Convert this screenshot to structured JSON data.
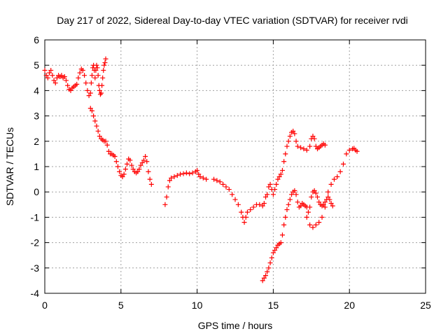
{
  "chart_data": {
    "type": "scatter",
    "title": "Day 217 of 2022, Sidereal Day-to-day VTEC variation (SDTVAR) for receiver rvdi",
    "xlabel": "GPS time / hours",
    "ylabel": "SDTVAR / TECUs",
    "xlim": [
      0,
      25
    ],
    "ylim": [
      -4,
      6
    ],
    "xticks": [
      0,
      5,
      10,
      15,
      20,
      25
    ],
    "yticks": [
      -4,
      -3,
      -2,
      -1,
      0,
      1,
      2,
      3,
      4,
      5,
      6
    ],
    "grid": true,
    "marker": "+",
    "color": "#ff0000",
    "series": [
      {
        "values": [
          [
            0.0,
            4.8
          ],
          [
            0.1,
            4.6
          ],
          [
            0.2,
            4.5
          ],
          [
            0.3,
            4.7
          ],
          [
            0.4,
            4.8
          ],
          [
            0.5,
            4.6
          ],
          [
            0.6,
            4.4
          ],
          [
            0.7,
            4.3
          ],
          [
            0.8,
            4.5
          ],
          [
            0.9,
            4.6
          ],
          [
            1.0,
            4.55
          ],
          [
            1.1,
            4.6
          ],
          [
            1.2,
            4.5
          ],
          [
            1.3,
            4.55
          ],
          [
            1.4,
            4.4
          ],
          [
            1.5,
            4.2
          ],
          [
            1.6,
            4.05
          ],
          [
            1.7,
            4.0
          ],
          [
            1.8,
            4.1
          ],
          [
            1.9,
            4.15
          ],
          [
            2.0,
            4.2
          ],
          [
            2.1,
            4.25
          ],
          [
            2.2,
            4.5
          ],
          [
            2.3,
            4.7
          ],
          [
            2.4,
            4.85
          ],
          [
            2.5,
            4.8
          ],
          [
            2.6,
            4.6
          ],
          [
            2.7,
            4.3
          ],
          [
            2.8,
            4.0
          ],
          [
            2.9,
            3.8
          ],
          [
            3.0,
            3.9
          ],
          [
            3.05,
            4.3
          ],
          [
            3.1,
            4.6
          ],
          [
            3.15,
            4.9
          ],
          [
            3.2,
            5.0
          ],
          [
            3.25,
            4.8
          ],
          [
            3.3,
            4.5
          ],
          [
            3.35,
            4.8
          ],
          [
            3.4,
            5.0
          ],
          [
            3.45,
            4.9
          ],
          [
            3.5,
            4.6
          ],
          [
            3.55,
            4.2
          ],
          [
            3.6,
            4.0
          ],
          [
            3.65,
            3.85
          ],
          [
            3.7,
            3.9
          ],
          [
            3.75,
            4.2
          ],
          [
            3.8,
            4.5
          ],
          [
            3.85,
            4.8
          ],
          [
            3.9,
            5.0
          ],
          [
            3.95,
            5.1
          ],
          [
            4.0,
            5.25
          ],
          [
            3.0,
            3.3
          ],
          [
            3.1,
            3.2
          ],
          [
            3.2,
            3.0
          ],
          [
            3.3,
            2.8
          ],
          [
            3.4,
            2.6
          ],
          [
            3.5,
            2.4
          ],
          [
            3.6,
            2.2
          ],
          [
            3.7,
            2.1
          ],
          [
            3.8,
            2.05
          ],
          [
            3.9,
            2.0
          ],
          [
            4.0,
            2.0
          ],
          [
            4.1,
            1.85
          ],
          [
            4.2,
            1.6
          ],
          [
            4.3,
            1.5
          ],
          [
            4.4,
            1.5
          ],
          [
            4.5,
            1.45
          ],
          [
            4.6,
            1.4
          ],
          [
            4.7,
            1.2
          ],
          [
            4.8,
            1.0
          ],
          [
            4.9,
            0.8
          ],
          [
            5.0,
            0.65
          ],
          [
            5.1,
            0.6
          ],
          [
            5.2,
            0.7
          ],
          [
            5.3,
            0.9
          ],
          [
            5.4,
            1.1
          ],
          [
            5.5,
            1.3
          ],
          [
            5.6,
            1.25
          ],
          [
            5.7,
            1.05
          ],
          [
            5.8,
            0.9
          ],
          [
            5.9,
            0.8
          ],
          [
            6.0,
            0.75
          ],
          [
            6.1,
            0.8
          ],
          [
            6.2,
            0.9
          ],
          [
            6.3,
            1.05
          ],
          [
            6.4,
            1.15
          ],
          [
            6.5,
            1.25
          ],
          [
            6.6,
            1.4
          ],
          [
            6.7,
            1.2
          ],
          [
            6.8,
            0.8
          ],
          [
            6.9,
            0.5
          ],
          [
            7.0,
            0.3
          ],
          [
            7.9,
            -0.5
          ],
          [
            8.0,
            -0.2
          ],
          [
            8.1,
            0.2
          ],
          [
            8.2,
            0.45
          ],
          [
            8.3,
            0.55
          ],
          [
            8.5,
            0.6
          ],
          [
            8.7,
            0.65
          ],
          [
            8.9,
            0.7
          ],
          [
            9.1,
            0.72
          ],
          [
            9.3,
            0.75
          ],
          [
            9.5,
            0.72
          ],
          [
            9.7,
            0.75
          ],
          [
            9.9,
            0.8
          ],
          [
            10.0,
            0.85
          ],
          [
            10.1,
            0.7
          ],
          [
            10.2,
            0.6
          ],
          [
            10.4,
            0.55
          ],
          [
            10.6,
            0.5
          ],
          [
            11.1,
            0.5
          ],
          [
            11.3,
            0.45
          ],
          [
            11.5,
            0.4
          ],
          [
            11.7,
            0.3
          ],
          [
            11.9,
            0.2
          ],
          [
            12.1,
            0.1
          ],
          [
            12.3,
            -0.1
          ],
          [
            12.5,
            -0.3
          ],
          [
            12.7,
            -0.5
          ],
          [
            12.9,
            -0.8
          ],
          [
            13.0,
            -1.0
          ],
          [
            13.1,
            -1.2
          ],
          [
            13.2,
            -1.0
          ],
          [
            13.3,
            -0.8
          ],
          [
            13.5,
            -0.7
          ],
          [
            13.7,
            -0.6
          ],
          [
            13.9,
            -0.5
          ],
          [
            14.1,
            -0.5
          ],
          [
            14.3,
            -0.55
          ],
          [
            14.4,
            -0.45
          ],
          [
            14.5,
            -0.2
          ],
          [
            14.6,
            -0.1
          ],
          [
            14.7,
            0.2
          ],
          [
            14.8,
            0.3
          ],
          [
            14.9,
            0.1
          ],
          [
            15.0,
            -0.1
          ],
          [
            15.1,
            0.1
          ],
          [
            15.2,
            0.3
          ],
          [
            15.3,
            0.5
          ],
          [
            15.4,
            0.6
          ],
          [
            15.5,
            0.7
          ],
          [
            15.6,
            0.85
          ],
          [
            15.7,
            1.2
          ],
          [
            15.8,
            1.5
          ],
          [
            15.9,
            1.8
          ],
          [
            16.0,
            2.0
          ],
          [
            16.1,
            2.2
          ],
          [
            16.2,
            2.35
          ],
          [
            16.3,
            2.4
          ],
          [
            16.4,
            2.3
          ],
          [
            16.5,
            2.0
          ],
          [
            16.6,
            1.8
          ],
          [
            16.8,
            1.75
          ],
          [
            17.0,
            1.7
          ],
          [
            17.2,
            1.65
          ],
          [
            17.4,
            1.8
          ],
          [
            17.5,
            2.1
          ],
          [
            17.6,
            2.2
          ],
          [
            17.7,
            2.1
          ],
          [
            17.8,
            1.8
          ],
          [
            17.9,
            1.7
          ],
          [
            18.0,
            1.75
          ],
          [
            18.1,
            1.8
          ],
          [
            18.2,
            1.85
          ],
          [
            18.3,
            1.9
          ],
          [
            18.4,
            1.85
          ],
          [
            14.3,
            -3.5
          ],
          [
            14.4,
            -3.4
          ],
          [
            14.5,
            -3.3
          ],
          [
            14.6,
            -3.15
          ],
          [
            14.7,
            -3.0
          ],
          [
            14.8,
            -2.8
          ],
          [
            14.9,
            -2.6
          ],
          [
            15.0,
            -2.4
          ],
          [
            15.1,
            -2.3
          ],
          [
            15.2,
            -2.2
          ],
          [
            15.3,
            -2.1
          ],
          [
            15.4,
            -2.05
          ],
          [
            15.5,
            -2.0
          ],
          [
            15.6,
            -1.7
          ],
          [
            15.7,
            -1.3
          ],
          [
            15.8,
            -1.0
          ],
          [
            15.9,
            -0.7
          ],
          [
            16.0,
            -0.5
          ],
          [
            16.1,
            -0.3
          ],
          [
            16.2,
            -0.1
          ],
          [
            16.3,
            0.0
          ],
          [
            16.4,
            0.05
          ],
          [
            16.5,
            -0.1
          ],
          [
            16.6,
            -0.4
          ],
          [
            16.7,
            -0.6
          ],
          [
            16.8,
            -0.55
          ],
          [
            16.9,
            -0.45
          ],
          [
            17.0,
            -0.5
          ],
          [
            17.1,
            -0.55
          ],
          [
            17.2,
            -0.6
          ],
          [
            17.3,
            -0.8
          ],
          [
            17.4,
            -0.6
          ],
          [
            17.5,
            -0.2
          ],
          [
            17.6,
            0.0
          ],
          [
            17.7,
            0.05
          ],
          [
            17.8,
            -0.05
          ],
          [
            17.9,
            -0.2
          ],
          [
            18.0,
            -0.4
          ],
          [
            18.1,
            -0.5
          ],
          [
            18.2,
            -0.55
          ],
          [
            18.3,
            -0.5
          ],
          [
            18.4,
            -0.4
          ],
          [
            18.5,
            -0.3
          ],
          [
            18.6,
            -0.2
          ],
          [
            18.7,
            -0.3
          ],
          [
            18.8,
            -0.45
          ],
          [
            18.9,
            -0.55
          ],
          [
            17.2,
            -1.0
          ],
          [
            17.4,
            -1.3
          ],
          [
            17.6,
            -1.4
          ],
          [
            17.8,
            -1.3
          ],
          [
            18.0,
            -1.2
          ],
          [
            18.2,
            -1.0
          ],
          [
            18.4,
            -0.6
          ],
          [
            18.6,
            0.0
          ],
          [
            18.8,
            0.3
          ],
          [
            19.0,
            0.5
          ],
          [
            19.2,
            0.6
          ],
          [
            19.4,
            0.8
          ],
          [
            19.6,
            1.1
          ],
          [
            19.8,
            1.5
          ],
          [
            20.0,
            1.65
          ],
          [
            20.2,
            1.7
          ],
          [
            20.3,
            1.72
          ],
          [
            20.4,
            1.65
          ],
          [
            20.5,
            1.6
          ]
        ]
      }
    ]
  }
}
